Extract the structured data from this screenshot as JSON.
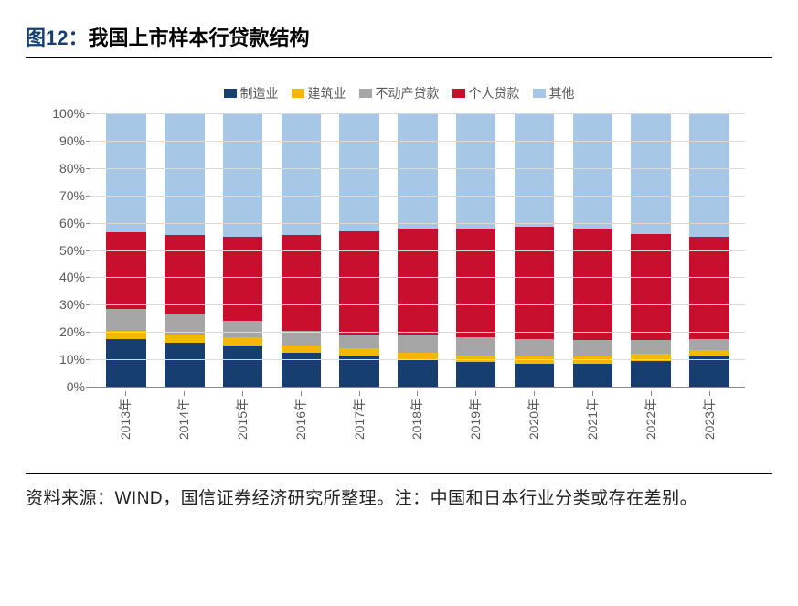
{
  "title": {
    "prefix": "图12：",
    "text": "我国上市样本行贷款结构",
    "prefix_color": "#163e6f",
    "fontsize": 22
  },
  "chart": {
    "type": "stacked-bar-100pct",
    "background_color": "#ffffff",
    "grid_color": "#d9d9d9",
    "axis_color": "#888888",
    "ylim": [
      0,
      100
    ],
    "ytick_step": 10,
    "y_suffix": "%",
    "label_fontsize": 14,
    "legend_fontsize": 14,
    "categories": [
      "2013年",
      "2014年",
      "2015年",
      "2016年",
      "2017年",
      "2018年",
      "2019年",
      "2020年",
      "2021年",
      "2022年",
      "2023年"
    ],
    "series": [
      {
        "name": "制造业",
        "color": "#163e6f",
        "values": [
          17.5,
          16.0,
          15.0,
          12.5,
          11.5,
          10.0,
          9.0,
          8.5,
          8.5,
          9.5,
          11.0
        ]
      },
      {
        "name": "建筑业",
        "color": "#f2b900",
        "values": [
          3.0,
          3.0,
          3.0,
          2.5,
          2.5,
          2.5,
          2.5,
          2.5,
          2.5,
          2.5,
          2.5
        ]
      },
      {
        "name": "不动产贷款",
        "color": "#a6a6a6",
        "values": [
          8.0,
          7.5,
          6.0,
          5.5,
          5.0,
          6.5,
          6.5,
          6.5,
          6.0,
          5.0,
          4.0
        ]
      },
      {
        "name": "个人贷款",
        "color": "#c8102e",
        "values": [
          28.0,
          29.0,
          31.0,
          35.0,
          38.0,
          39.0,
          40.0,
          41.0,
          41.0,
          39.0,
          37.5
        ]
      },
      {
        "name": "其他",
        "color": "#a7c7e7",
        "values": [
          43.5,
          44.5,
          45.0,
          44.5,
          43.0,
          42.0,
          42.0,
          41.5,
          42.0,
          44.0,
          45.0
        ]
      }
    ]
  },
  "source": {
    "text": "资料来源：WIND，国信证券经济研究所整理。注：中国和日本行业分类或存在差别。",
    "fontsize": 19
  }
}
